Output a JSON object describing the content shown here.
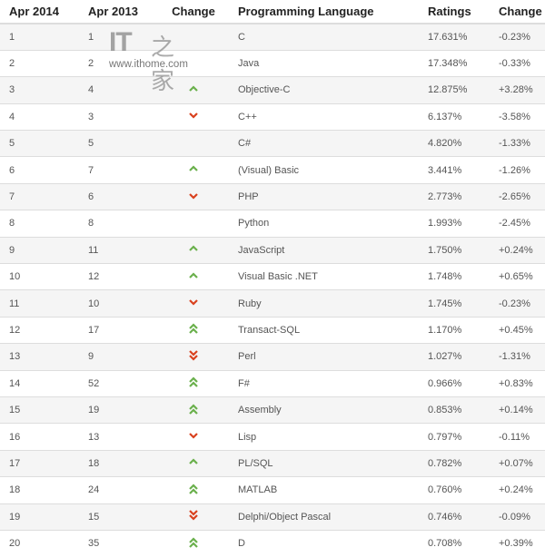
{
  "watermark": {
    "logo": "IT之家",
    "url": "www.ithome.com"
  },
  "colors": {
    "up": "#6ab04c",
    "down": "#d9411e"
  },
  "headers": [
    "Apr 2014",
    "Apr 2013",
    "Change",
    "Programming Language",
    "Ratings",
    "Change"
  ],
  "rows": [
    [
      "1",
      "1",
      "none",
      "C",
      "17.631%",
      "-0.23%"
    ],
    [
      "2",
      "2",
      "none",
      "Java",
      "17.348%",
      "-0.33%"
    ],
    [
      "3",
      "4",
      "up",
      "Objective-C",
      "12.875%",
      "+3.28%"
    ],
    [
      "4",
      "3",
      "down",
      "C++",
      "6.137%",
      "-3.58%"
    ],
    [
      "5",
      "5",
      "none",
      "C#",
      "4.820%",
      "-1.33%"
    ],
    [
      "6",
      "7",
      "up",
      "(Visual) Basic",
      "3.441%",
      "-1.26%"
    ],
    [
      "7",
      "6",
      "down",
      "PHP",
      "2.773%",
      "-2.65%"
    ],
    [
      "8",
      "8",
      "none",
      "Python",
      "1.993%",
      "-2.45%"
    ],
    [
      "9",
      "11",
      "up",
      "JavaScript",
      "1.750%",
      "+0.24%"
    ],
    [
      "10",
      "12",
      "up",
      "Visual Basic .NET",
      "1.748%",
      "+0.65%"
    ],
    [
      "11",
      "10",
      "down",
      "Ruby",
      "1.745%",
      "-0.23%"
    ],
    [
      "12",
      "17",
      "double-up",
      "Transact-SQL",
      "1.170%",
      "+0.45%"
    ],
    [
      "13",
      "9",
      "double-down",
      "Perl",
      "1.027%",
      "-1.31%"
    ],
    [
      "14",
      "52",
      "double-up",
      "F#",
      "0.966%",
      "+0.83%"
    ],
    [
      "15",
      "19",
      "double-up",
      "Assembly",
      "0.853%",
      "+0.14%"
    ],
    [
      "16",
      "13",
      "down",
      "Lisp",
      "0.797%",
      "-0.11%"
    ],
    [
      "17",
      "18",
      "up",
      "PL/SQL",
      "0.782%",
      "+0.07%"
    ],
    [
      "18",
      "24",
      "double-up",
      "MATLAB",
      "0.760%",
      "+0.24%"
    ],
    [
      "19",
      "15",
      "double-down",
      "Delphi/Object Pascal",
      "0.746%",
      "-0.09%"
    ],
    [
      "20",
      "35",
      "double-up",
      "D",
      "0.708%",
      "+0.39%"
    ]
  ]
}
